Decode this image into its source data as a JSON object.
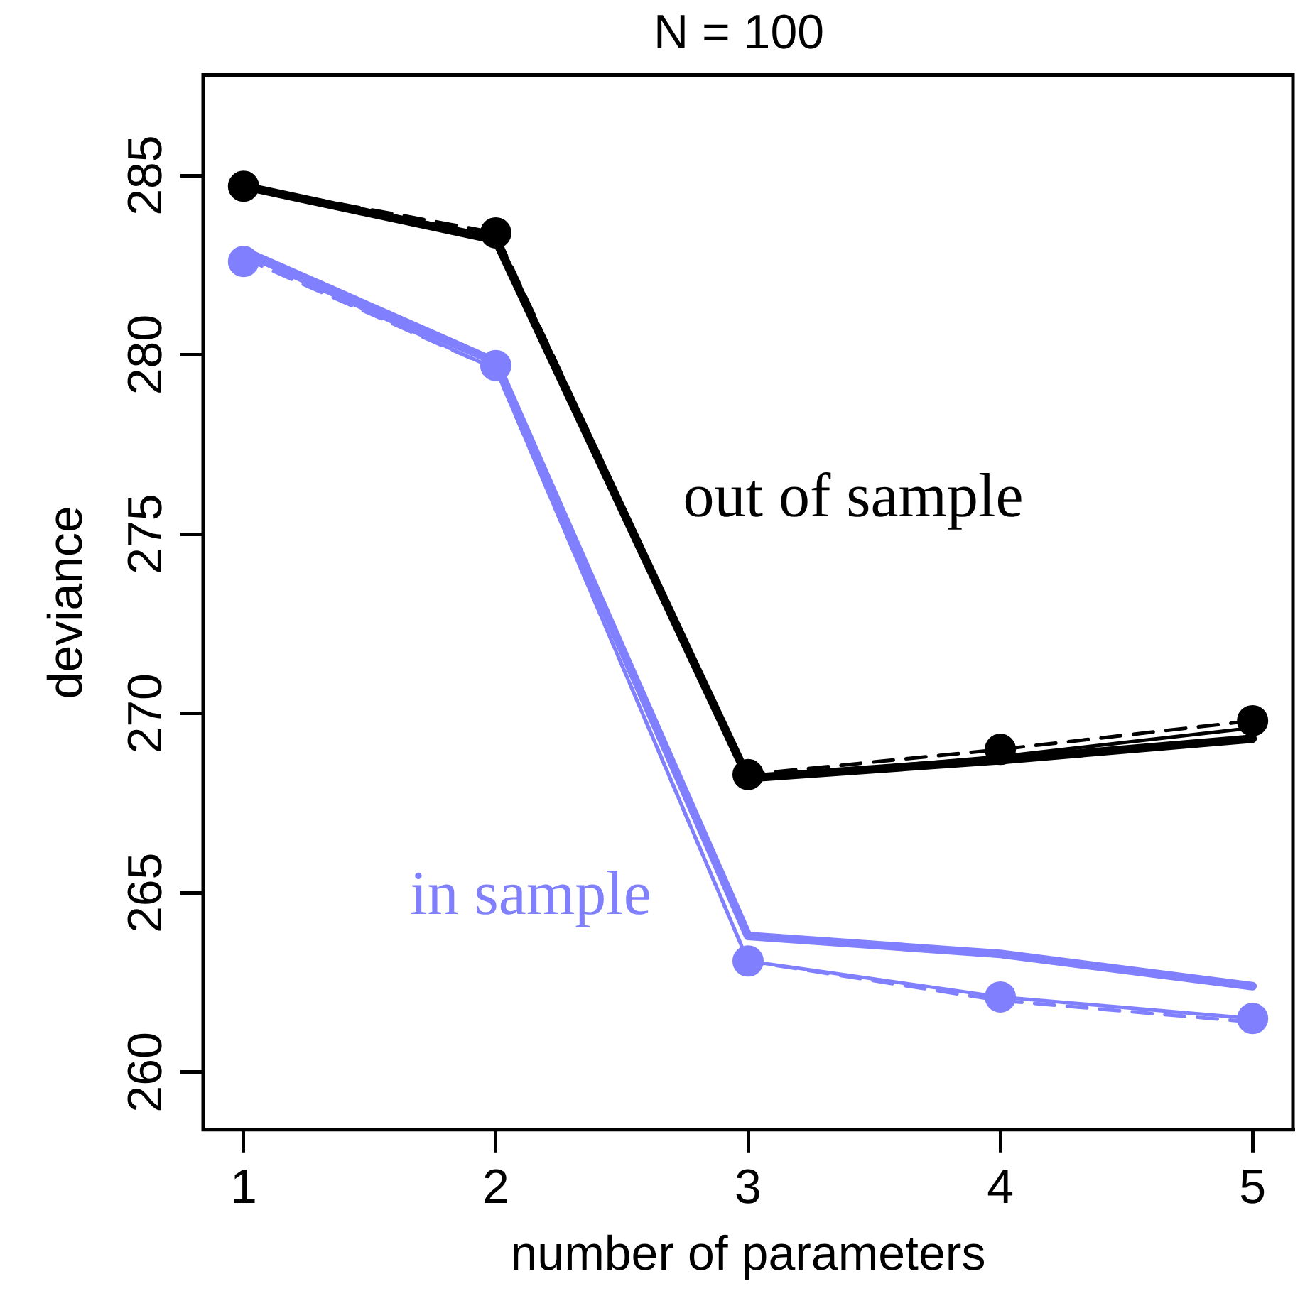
{
  "chart_data": {
    "type": "line",
    "title": "N = 100",
    "xlabel": "number of parameters",
    "ylabel": "deviance",
    "x": [
      1,
      2,
      3,
      4,
      5
    ],
    "xlim": [
      0.84,
      5.16
    ],
    "xticks": [
      1,
      2,
      3,
      4,
      5
    ],
    "ylim": [
      258.4,
      287.8
    ],
    "yticks": [
      260,
      265,
      270,
      275,
      280,
      285
    ],
    "grid": false,
    "legend": false,
    "series": [
      {
        "name": "out of sample",
        "color": "#000000",
        "line_style": "solid",
        "marker": "none",
        "values": [
          284.7,
          283.2,
          268.2,
          268.7,
          269.3
        ]
      },
      {
        "color": "#000000",
        "line_style": "solid",
        "marker": "none",
        "values": [
          284.7,
          283.3,
          268.2,
          268.8,
          269.6
        ]
      },
      {
        "color": "#000000",
        "line_style": "dashed",
        "marker": "none",
        "values": [
          284.7,
          283.4,
          268.3,
          269.0,
          269.8
        ]
      },
      {
        "type": "scatter",
        "color": "#000000",
        "marker": "circle",
        "values": [
          284.7,
          283.4,
          268.3,
          269.0,
          269.8
        ]
      },
      {
        "name": "in sample",
        "color": "#8080ff",
        "line_style": "solid",
        "marker": "none",
        "values": [
          282.9,
          279.8,
          263.8,
          263.3,
          262.4
        ]
      },
      {
        "color": "#8080ff",
        "line_style": "solid",
        "marker": "none",
        "values": [
          282.8,
          279.6,
          263.1,
          262.1,
          261.5
        ]
      },
      {
        "color": "#8080ff",
        "line_style": "dashed",
        "marker": "none",
        "values": [
          282.7,
          279.6,
          263.1,
          262.0,
          261.4
        ]
      },
      {
        "type": "scatter",
        "color": "#8080ff",
        "marker": "circle",
        "values": [
          282.6,
          279.7,
          263.1,
          262.1,
          261.5
        ]
      }
    ]
  }
}
